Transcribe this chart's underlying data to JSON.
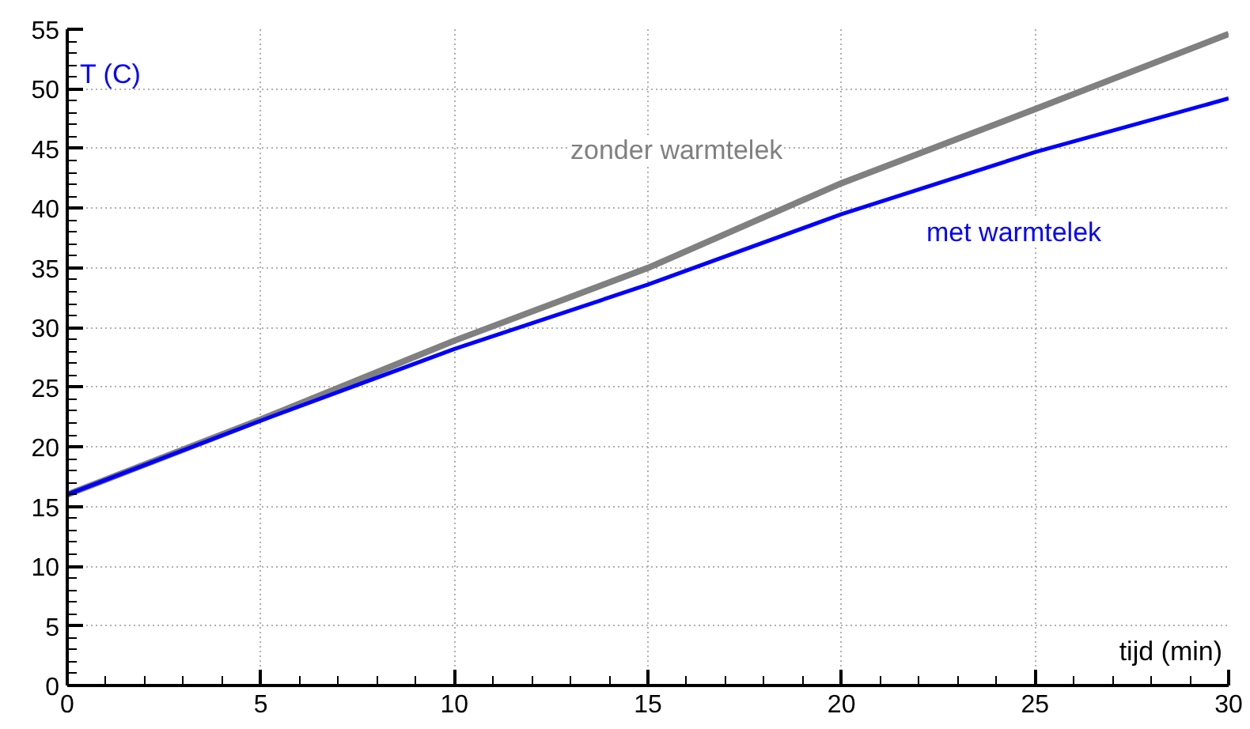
{
  "chart_data": {
    "type": "line",
    "ylabel": "T (C)",
    "xlabel": "tijd (min)",
    "x": [
      0,
      5,
      10,
      15,
      20,
      25,
      30
    ],
    "series": [
      {
        "name": "zonder warmtelek",
        "color": "#808080",
        "values": [
          16,
          22.3,
          28.9,
          35.0,
          42.1,
          48.3,
          54.6
        ]
      },
      {
        "name": "met warmtelek",
        "color": "#0000ff",
        "values": [
          16,
          22.2,
          28.2,
          33.6,
          39.5,
          44.7,
          49.2
        ]
      }
    ],
    "xlim": [
      0,
      30
    ],
    "ylim": [
      0,
      55
    ],
    "xticks": [
      0,
      5,
      10,
      15,
      20,
      25,
      30
    ],
    "yticks": [
      0,
      5,
      10,
      15,
      20,
      25,
      30,
      35,
      40,
      45,
      50,
      55
    ],
    "grid": true,
    "line_style": "solid",
    "marker": "none"
  }
}
